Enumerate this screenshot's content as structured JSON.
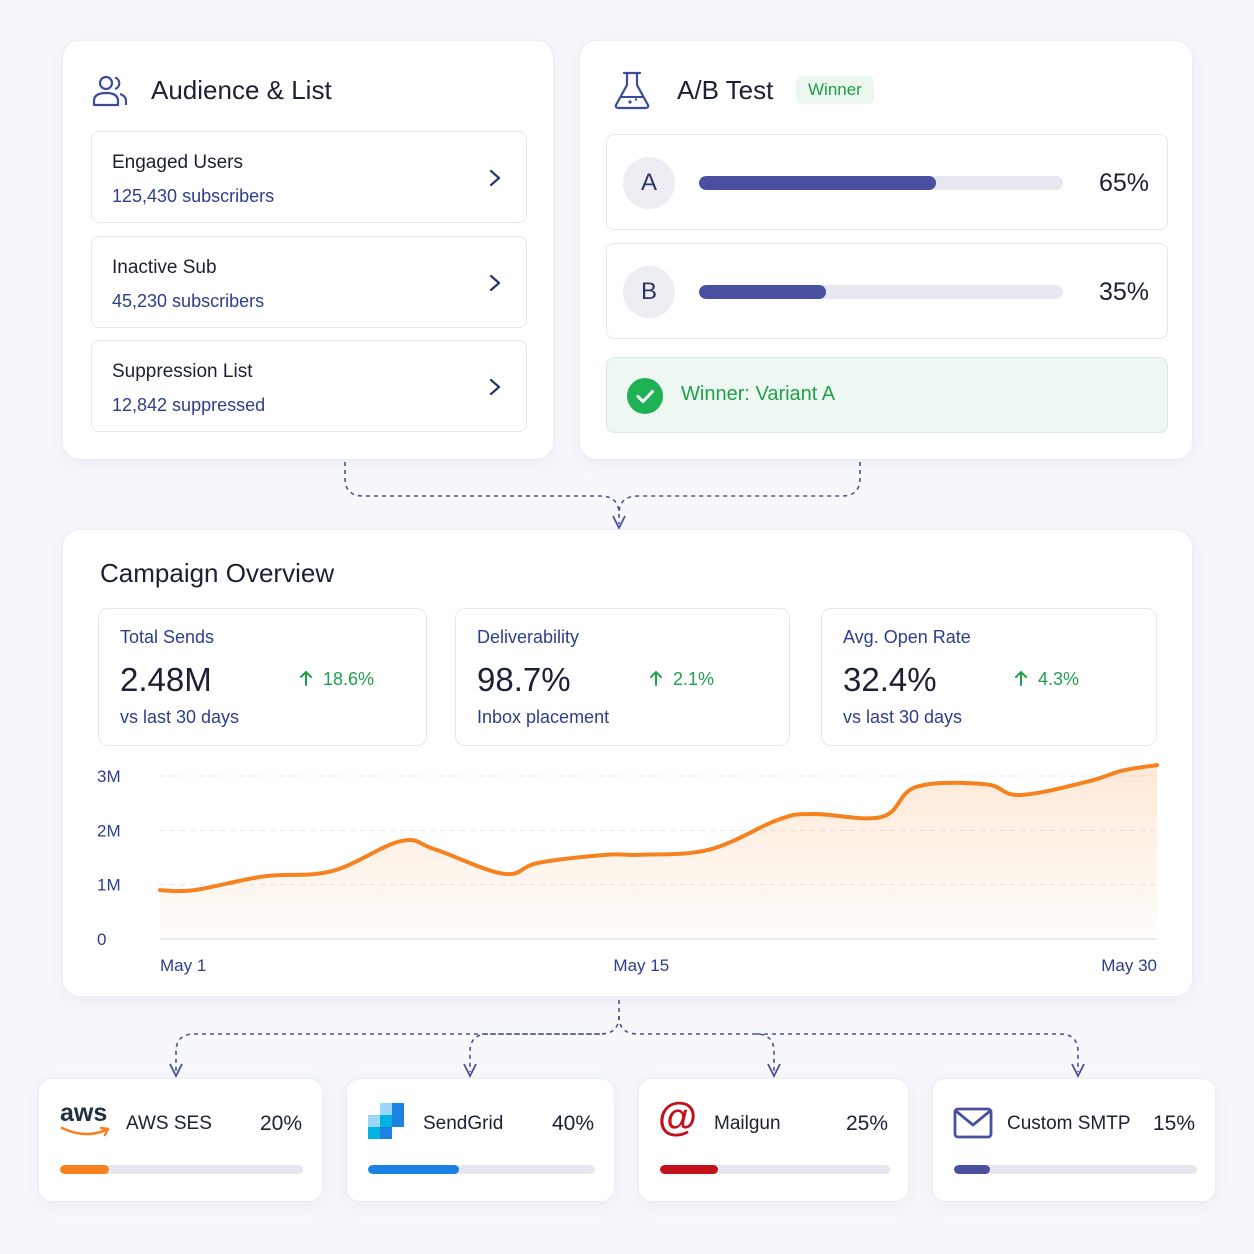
{
  "audience": {
    "title": "Audience & List",
    "items": [
      {
        "name": "Engaged Users",
        "count": "125,430 subscribers"
      },
      {
        "name": "Inactive Sub",
        "count": "45,230 subscribers"
      },
      {
        "name": "Suppression List",
        "count": "12,842 suppressed"
      }
    ]
  },
  "ab_test": {
    "title": "A/B Test",
    "badge": "Winner",
    "variants": [
      {
        "label": "A",
        "percent_text": "65%",
        "share": 0.65
      },
      {
        "label": "B",
        "percent_text": "35%",
        "share": 0.35
      }
    ],
    "winner_text": "Winner: Variant A"
  },
  "overview": {
    "title": "Campaign Overview",
    "kpis": [
      {
        "label": "Total Sends",
        "value": "2.48M",
        "delta": "18.6%",
        "sub": "vs last 30 days"
      },
      {
        "label": "Deliverability",
        "value": "98.7%",
        "delta": "2.1%",
        "sub": "Inbox placement"
      },
      {
        "label": "Avg. Open Rate",
        "value": "32.4%",
        "delta": "4.3%",
        "sub": "vs last 30 days"
      }
    ]
  },
  "chart_data": {
    "type": "area",
    "title": "",
    "xlabel": "",
    "ylabel": "",
    "ylim": [
      0,
      3000000
    ],
    "y_ticks": [
      {
        "label": "3M",
        "value": 3000000
      },
      {
        "label": "2M",
        "value": 2000000
      },
      {
        "label": "1M",
        "value": 1000000
      },
      {
        "label": "0",
        "value": 0
      }
    ],
    "x_ticks": [
      {
        "label": "May 1",
        "day": 1
      },
      {
        "label": "May 15",
        "day": 15
      },
      {
        "label": "May 30",
        "day": 30
      }
    ],
    "grid": true,
    "legend": "none",
    "color": "#f5821f",
    "series": [
      {
        "x": [
          1,
          2,
          4,
          6,
          8,
          9,
          11,
          12,
          14,
          15,
          17,
          19,
          20,
          22,
          23,
          25,
          26,
          28,
          29,
          30
        ],
        "values": [
          900000,
          900000,
          1150000,
          1250000,
          1800000,
          1650000,
          1200000,
          1400000,
          1550000,
          1550000,
          1650000,
          2200000,
          2300000,
          2250000,
          2800000,
          2850000,
          2650000,
          2900000,
          3100000,
          3200000
        ]
      }
    ]
  },
  "providers": [
    {
      "name": "AWS SES",
      "percent_text": "20%",
      "share": 0.2,
      "color": "#f5821f",
      "logo_text": "aws"
    },
    {
      "name": "SendGrid",
      "percent_text": "40%",
      "share": 0.4,
      "color": "#1a82e2"
    },
    {
      "name": "Mailgun",
      "percent_text": "25%",
      "share": 0.25,
      "color": "#c1121c",
      "logo_text": "@"
    },
    {
      "name": "Custom SMTP",
      "percent_text": "15%",
      "share": 0.15,
      "color": "#4b4f9f"
    }
  ],
  "colors": {
    "accent": "#4b4f9f",
    "success": "#1fb254",
    "chart_line": "#f5821f",
    "label_blue": "#2c3e8c"
  }
}
